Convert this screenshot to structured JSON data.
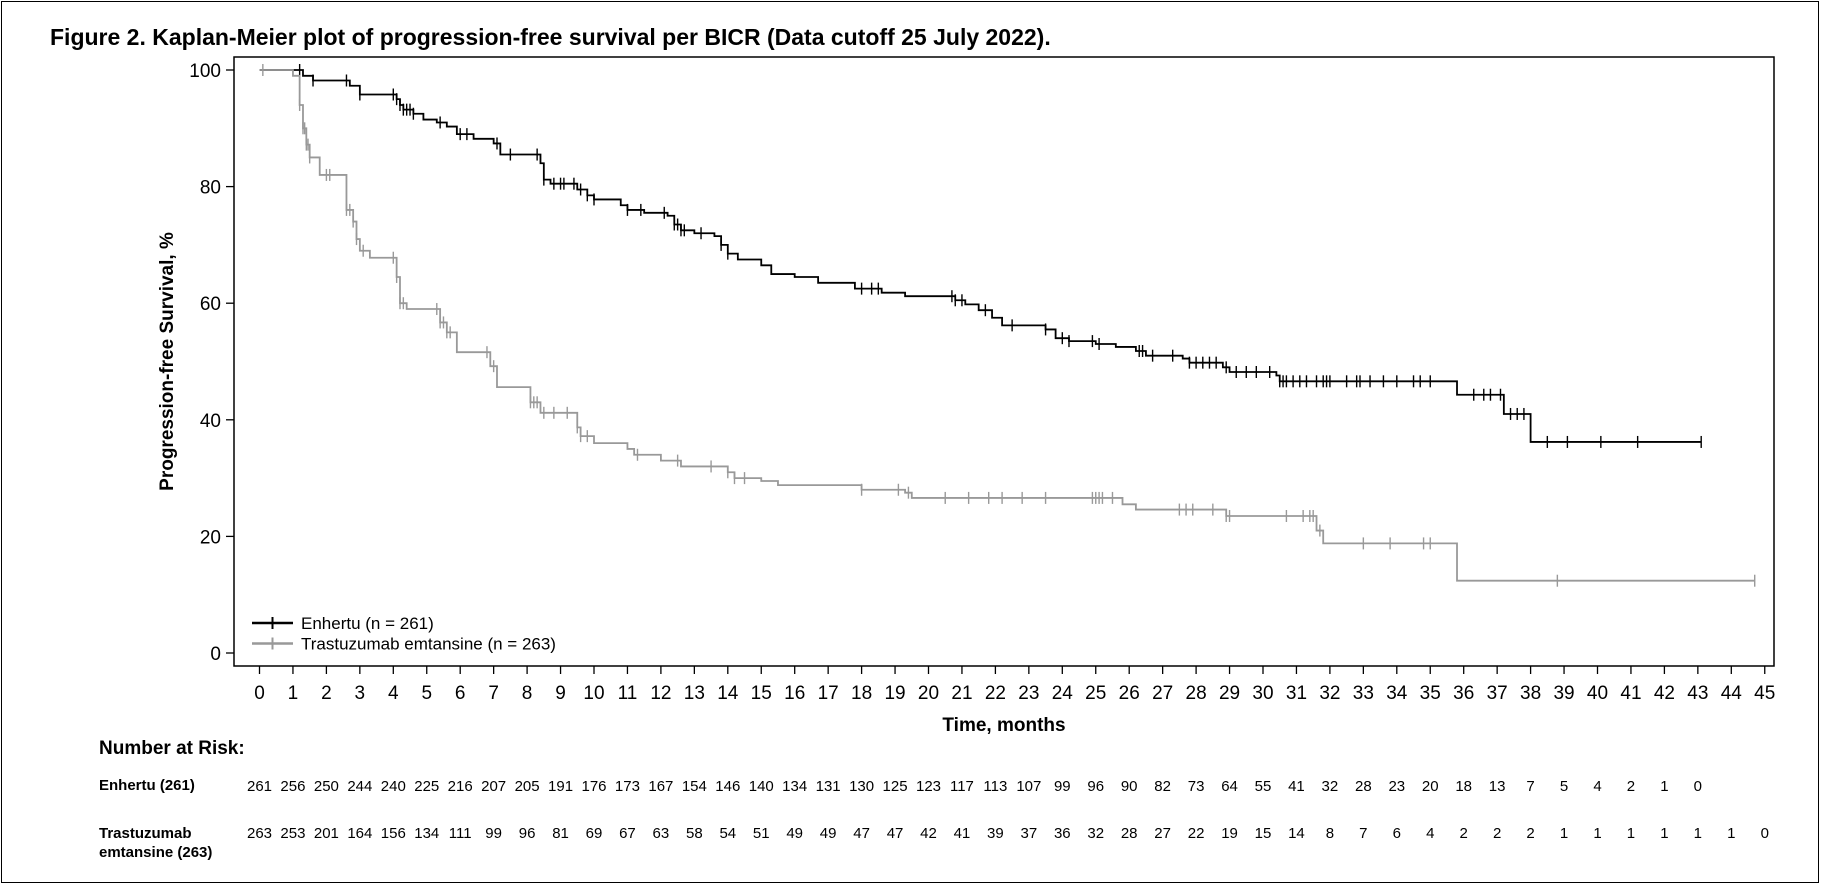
{
  "title": "Figure 2. Kaplan-Meier plot of progression-free survival per BICR (Data cutoff 25 July 2022).",
  "chart_data": {
    "type": "line",
    "subtype": "kaplan-meier step",
    "xlabel": "Time, months",
    "ylabel": "Progression-free Survival, %",
    "xlim": [
      -0.8,
      45.5
    ],
    "ylim": [
      -2,
      102
    ],
    "x_ticks": [
      0,
      1,
      2,
      3,
      4,
      5,
      6,
      7,
      8,
      9,
      10,
      11,
      12,
      13,
      14,
      15,
      16,
      17,
      18,
      19,
      20,
      21,
      22,
      23,
      24,
      25,
      26,
      27,
      28,
      29,
      30,
      31,
      32,
      33,
      34,
      35,
      36,
      37,
      38,
      39,
      40,
      41,
      42,
      43,
      44,
      45
    ],
    "y_ticks": [
      0,
      20,
      40,
      60,
      80,
      100
    ],
    "grid": false,
    "legend_position": "bottom-left",
    "series": [
      {
        "name": "Enhertu (n = 261)",
        "color": "#000000",
        "steps": [
          [
            0,
            100
          ],
          [
            1.3,
            99
          ],
          [
            1.6,
            98.2
          ],
          [
            2.7,
            97.3
          ],
          [
            3.0,
            95.8
          ],
          [
            4.1,
            95.0
          ],
          [
            4.2,
            94.0
          ],
          [
            4.3,
            93.2
          ],
          [
            4.6,
            92.5
          ],
          [
            4.9,
            91.5
          ],
          [
            5.3,
            91.0
          ],
          [
            5.6,
            90.3
          ],
          [
            5.9,
            89.0
          ],
          [
            6.4,
            88.2
          ],
          [
            7.0,
            87.4
          ],
          [
            7.2,
            85.5
          ],
          [
            8.4,
            84.0
          ],
          [
            8.5,
            81.2
          ],
          [
            8.7,
            80.5
          ],
          [
            9.5,
            79.5
          ],
          [
            9.8,
            78.5
          ],
          [
            10.0,
            77.8
          ],
          [
            10.8,
            76.8
          ],
          [
            11.0,
            76.0
          ],
          [
            11.5,
            75.5
          ],
          [
            12.2,
            75.0
          ],
          [
            12.4,
            73.5
          ],
          [
            12.6,
            72.5
          ],
          [
            13.0,
            72.0
          ],
          [
            13.6,
            71.5
          ],
          [
            13.8,
            70.0
          ],
          [
            14.0,
            68.5
          ],
          [
            14.3,
            67.5
          ],
          [
            15.0,
            66.5
          ],
          [
            15.3,
            65.0
          ],
          [
            16.0,
            64.5
          ],
          [
            16.7,
            63.5
          ],
          [
            17.8,
            62.5
          ],
          [
            18.6,
            61.8
          ],
          [
            19.3,
            61.2
          ],
          [
            20.8,
            60.5
          ],
          [
            21.1,
            59.8
          ],
          [
            21.5,
            58.8
          ],
          [
            21.9,
            57.5
          ],
          [
            22.2,
            56.2
          ],
          [
            23.5,
            55.5
          ],
          [
            23.8,
            54.0
          ],
          [
            24.2,
            53.5
          ],
          [
            25.0,
            53.0
          ],
          [
            25.6,
            52.5
          ],
          [
            26.2,
            51.8
          ],
          [
            26.5,
            51.0
          ],
          [
            27.6,
            50.5
          ],
          [
            27.8,
            49.8
          ],
          [
            28.8,
            49.0
          ],
          [
            29.0,
            48.2
          ],
          [
            30.4,
            47.6
          ],
          [
            30.5,
            46.6
          ],
          [
            35.8,
            44.3
          ],
          [
            37.2,
            41.0
          ],
          [
            38.0,
            36.2
          ],
          [
            43.1,
            36.2
          ]
        ],
        "censor_times": [
          1.2,
          1.6,
          2.6,
          3.0,
          4.0,
          4.1,
          4.2,
          4.3,
          4.4,
          4.5,
          4.6,
          5.4,
          6.0,
          6.2,
          7.1,
          7.5,
          8.3,
          8.5,
          8.8,
          9.0,
          9.1,
          9.4,
          9.6,
          9.8,
          10.0,
          11.0,
          11.4,
          12.1,
          12.4,
          12.5,
          12.6,
          12.7,
          13.2,
          13.8,
          14.0,
          18.0,
          18.3,
          18.5,
          20.7,
          20.8,
          21.0,
          21.7,
          22.5,
          23.5,
          24.0,
          24.2,
          24.9,
          25.1,
          26.3,
          26.4,
          26.7,
          27.3,
          27.8,
          28.0,
          28.2,
          28.4,
          28.6,
          28.9,
          29.2,
          29.5,
          29.8,
          30.2,
          30.5,
          30.6,
          30.7,
          30.9,
          31.1,
          31.3,
          31.6,
          31.8,
          31.9,
          32.0,
          32.5,
          32.8,
          32.9,
          33.2,
          33.6,
          34.0,
          34.5,
          34.7,
          35.0,
          36.3,
          36.6,
          36.8,
          37.1,
          37.4,
          37.6,
          37.8,
          38.5,
          39.1,
          40.1,
          41.2,
          43.1
        ]
      },
      {
        "name": "Trastuzumab emtansine (n = 263)",
        "color": "#999999",
        "steps": [
          [
            0,
            100
          ],
          [
            1.0,
            99
          ],
          [
            1.2,
            94
          ],
          [
            1.3,
            90
          ],
          [
            1.4,
            87.2
          ],
          [
            1.5,
            85
          ],
          [
            1.8,
            82
          ],
          [
            2.6,
            76
          ],
          [
            2.8,
            74
          ],
          [
            2.9,
            71
          ],
          [
            3.0,
            69
          ],
          [
            3.3,
            67.8
          ],
          [
            4.1,
            64.5
          ],
          [
            4.2,
            60
          ],
          [
            4.4,
            59
          ],
          [
            5.4,
            56.7
          ],
          [
            5.6,
            55
          ],
          [
            5.9,
            51.6
          ],
          [
            6.9,
            49.2
          ],
          [
            7.1,
            45.6
          ],
          [
            8.1,
            43.0
          ],
          [
            8.4,
            41.2
          ],
          [
            9.5,
            38.7
          ],
          [
            9.6,
            37.2
          ],
          [
            10.0,
            36.0
          ],
          [
            11.0,
            35.0
          ],
          [
            11.2,
            34.0
          ],
          [
            12.0,
            33.0
          ],
          [
            12.6,
            32.0
          ],
          [
            14.0,
            31.0
          ],
          [
            14.2,
            30.0
          ],
          [
            15.0,
            29.5
          ],
          [
            15.5,
            28.8
          ],
          [
            18.0,
            28.0
          ],
          [
            19.3,
            27.5
          ],
          [
            19.5,
            26.6
          ],
          [
            25.8,
            25.5
          ],
          [
            26.2,
            24.6
          ],
          [
            28.9,
            23.5
          ],
          [
            31.6,
            21.0
          ],
          [
            31.8,
            18.8
          ],
          [
            35.8,
            12.4
          ],
          [
            44.7,
            12.4
          ]
        ],
        "censor_times": [
          0.1,
          1.2,
          1.3,
          1.35,
          1.4,
          1.45,
          1.5,
          2.0,
          2.1,
          2.6,
          2.7,
          2.8,
          2.9,
          3.1,
          4.0,
          4.1,
          4.2,
          4.3,
          5.3,
          5.4,
          5.5,
          5.6,
          5.7,
          6.8,
          7.0,
          8.1,
          8.2,
          8.3,
          8.5,
          8.8,
          9.2,
          9.5,
          9.6,
          9.8,
          11.3,
          12.5,
          13.5,
          14.0,
          14.2,
          14.5,
          18.0,
          19.1,
          19.4,
          20.5,
          21.2,
          21.8,
          22.2,
          22.8,
          23.5,
          24.9,
          25.0,
          25.1,
          25.2,
          25.5,
          27.5,
          27.7,
          27.9,
          28.5,
          28.9,
          29.0,
          30.7,
          31.2,
          31.4,
          31.5,
          31.7,
          33.0,
          33.8,
          34.8,
          35.0,
          38.8,
          44.7
        ]
      }
    ]
  },
  "risk_table": {
    "heading": "Number at Risk:",
    "rows": [
      {
        "label": "Enhertu (261)",
        "values": [
          "261",
          "256",
          "250",
          "244",
          "240",
          "225",
          "216",
          "207",
          "205",
          "191",
          "176",
          "173",
          "167",
          "154",
          "146",
          "140",
          "134",
          "131",
          "130",
          "125",
          "123",
          "117",
          "113",
          "107",
          "99",
          "96",
          "90",
          "82",
          "73",
          "64",
          "55",
          "41",
          "32",
          "28",
          "23",
          "20",
          "18",
          "13",
          "7",
          "5",
          "4",
          "2",
          "1",
          "0"
        ]
      },
      {
        "label": "Trastuzumab emtansine (263)",
        "values": [
          "263",
          "253",
          "201",
          "164",
          "156",
          "134",
          "111",
          "99",
          "96",
          "81",
          "69",
          "67",
          "63",
          "58",
          "54",
          "51",
          "49",
          "49",
          "47",
          "47",
          "42",
          "41",
          "39",
          "37",
          "36",
          "32",
          "28",
          "27",
          "22",
          "19",
          "15",
          "14",
          "8",
          "7",
          "6",
          "4",
          "2",
          "2",
          "2",
          "1",
          "1",
          "1",
          "1",
          "1",
          "1",
          "0"
        ]
      }
    ]
  }
}
